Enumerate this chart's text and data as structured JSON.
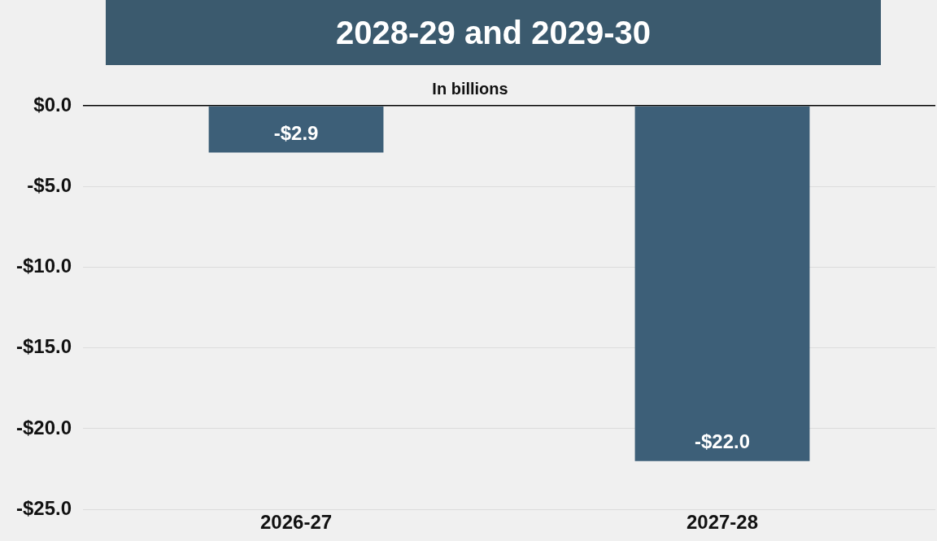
{
  "chart_data": {
    "type": "bar",
    "title": "2028-29 and 2029-30",
    "subtitle": "In billions",
    "categories": [
      "2026-27",
      "2027-28"
    ],
    "values": [
      -2.9,
      -22.0
    ],
    "color": "#3d5f78",
    "value_labels": [
      "-$2.9",
      "-$22.0"
    ],
    "ylim": [
      -25,
      0
    ],
    "yticks": [
      {
        "value": 0,
        "label": "$0.0"
      },
      {
        "value": -5,
        "label": "-$5.0"
      },
      {
        "value": -10,
        "label": "-$10.0"
      },
      {
        "value": -15,
        "label": "-$15.0"
      },
      {
        "value": -20,
        "label": "-$20.0"
      },
      {
        "value": -25,
        "label": "-$25.0"
      }
    ],
    "grid": "y",
    "legend": false
  }
}
